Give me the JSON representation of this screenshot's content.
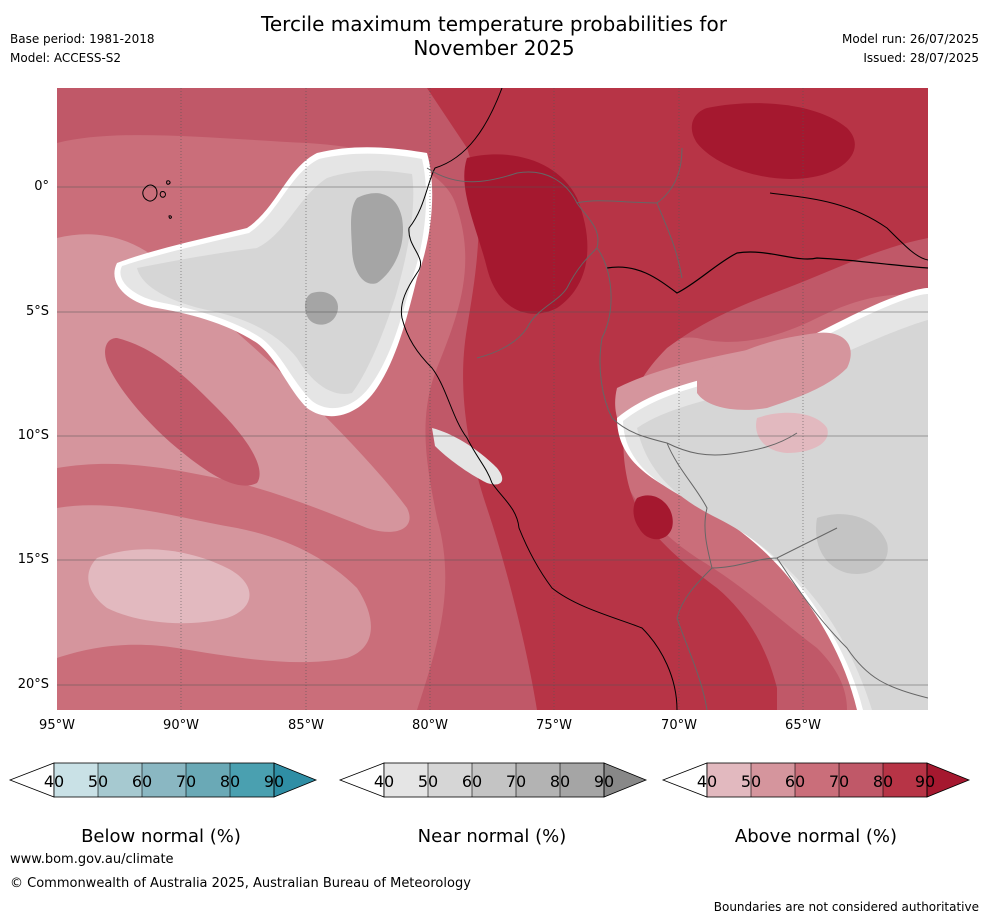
{
  "header": {
    "base_period": "Base period: 1981-2018",
    "model": "Model: ACCESS-S2",
    "title_line1": "Tercile maximum temperature probabilities for",
    "title_line2": "November 2025",
    "model_run": "Model run: 26/07/2025",
    "issued": "Issued: 28/07/2025"
  },
  "map": {
    "lat_ticks": [
      "0°",
      "5°S",
      "10°S",
      "15°S",
      "20°S"
    ],
    "lon_ticks": [
      "95°W",
      "90°W",
      "85°W",
      "80°W",
      "75°W",
      "70°W",
      "65°W"
    ],
    "colors": {
      "above": [
        "#e2b9bf",
        "#d5959d",
        "#ca6e7a",
        "#c05868",
        "#b73446",
        "#a5182f"
      ],
      "near": [
        "#e5e5e5",
        "#d6d6d6",
        "#c4c4c4",
        "#b3b3b3",
        "#a5a5a5",
        "#888888"
      ],
      "below": [
        "#c9e1e6",
        "#a6c9d0",
        "#8ab7c2",
        "#6aa9b6",
        "#4aa0b0",
        "#2f8ea5"
      ]
    }
  },
  "colorbars": [
    {
      "id": "below",
      "ticks": [
        "40",
        "50",
        "60",
        "70",
        "80",
        "90"
      ],
      "label": "Below normal (%)"
    },
    {
      "id": "near",
      "ticks": [
        "40",
        "50",
        "60",
        "70",
        "80",
        "90"
      ],
      "label": "Near normal (%)"
    },
    {
      "id": "above",
      "ticks": [
        "40",
        "50",
        "60",
        "70",
        "80",
        "90"
      ],
      "label": "Above normal (%)"
    }
  ],
  "footer": {
    "website": "www.bom.gov.au/climate",
    "copyright": "© Commonwealth of Australia 2025, Australian Bureau of Meteorology",
    "disclaimer": "Boundaries are not considered authoritative"
  }
}
